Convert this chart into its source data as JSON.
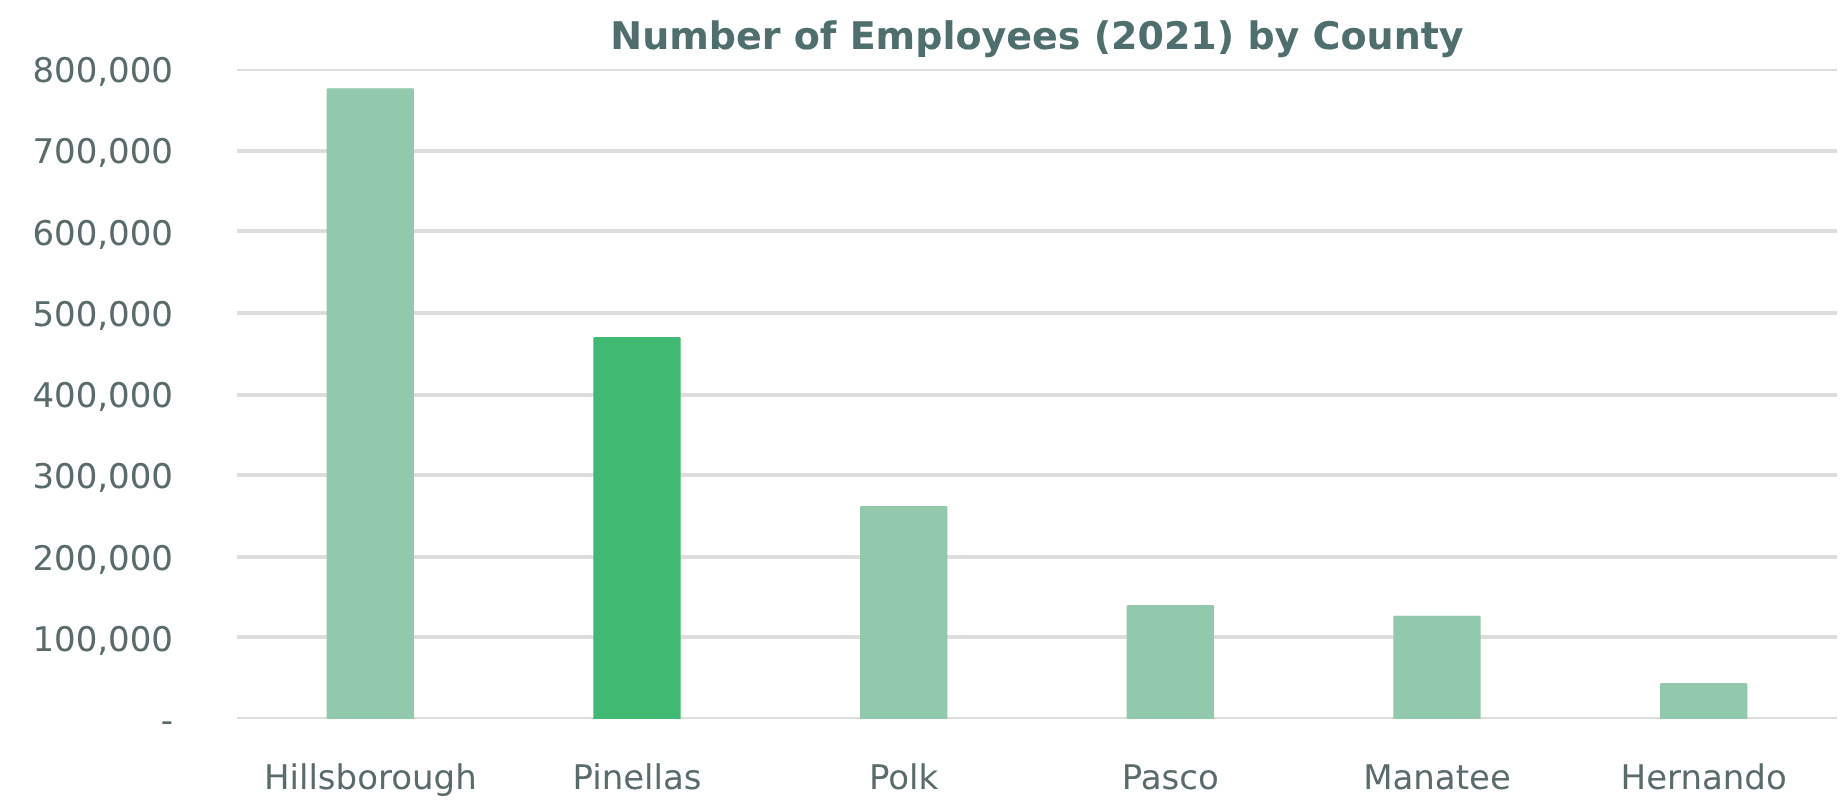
{
  "chart_data": {
    "type": "bar",
    "title": "Number of Employees (2021) by County",
    "categories": [
      "Hillsborough",
      "Pinellas",
      "Polk",
      "Pasco",
      "Manatee",
      "Hernando"
    ],
    "values": [
      775000,
      469000,
      261000,
      139000,
      126000,
      43000
    ],
    "colors": [
      "#92c8ac",
      "#40b973",
      "#92c8ac",
      "#92c8ac",
      "#92c8ac",
      "#92c8ac"
    ],
    "ylim": [
      0,
      800000
    ],
    "yticks": [
      {
        "value": 0,
        "label": "-"
      },
      {
        "value": 100000,
        "label": "100,000"
      },
      {
        "value": 200000,
        "label": "200,000"
      },
      {
        "value": 300000,
        "label": "300,000"
      },
      {
        "value": 400000,
        "label": "400,000"
      },
      {
        "value": 500000,
        "label": "500,000"
      },
      {
        "value": 600000,
        "label": "600,000"
      },
      {
        "value": 700000,
        "label": "700,000"
      },
      {
        "value": 800000,
        "label": "800,000"
      }
    ],
    "grid": "y"
  }
}
